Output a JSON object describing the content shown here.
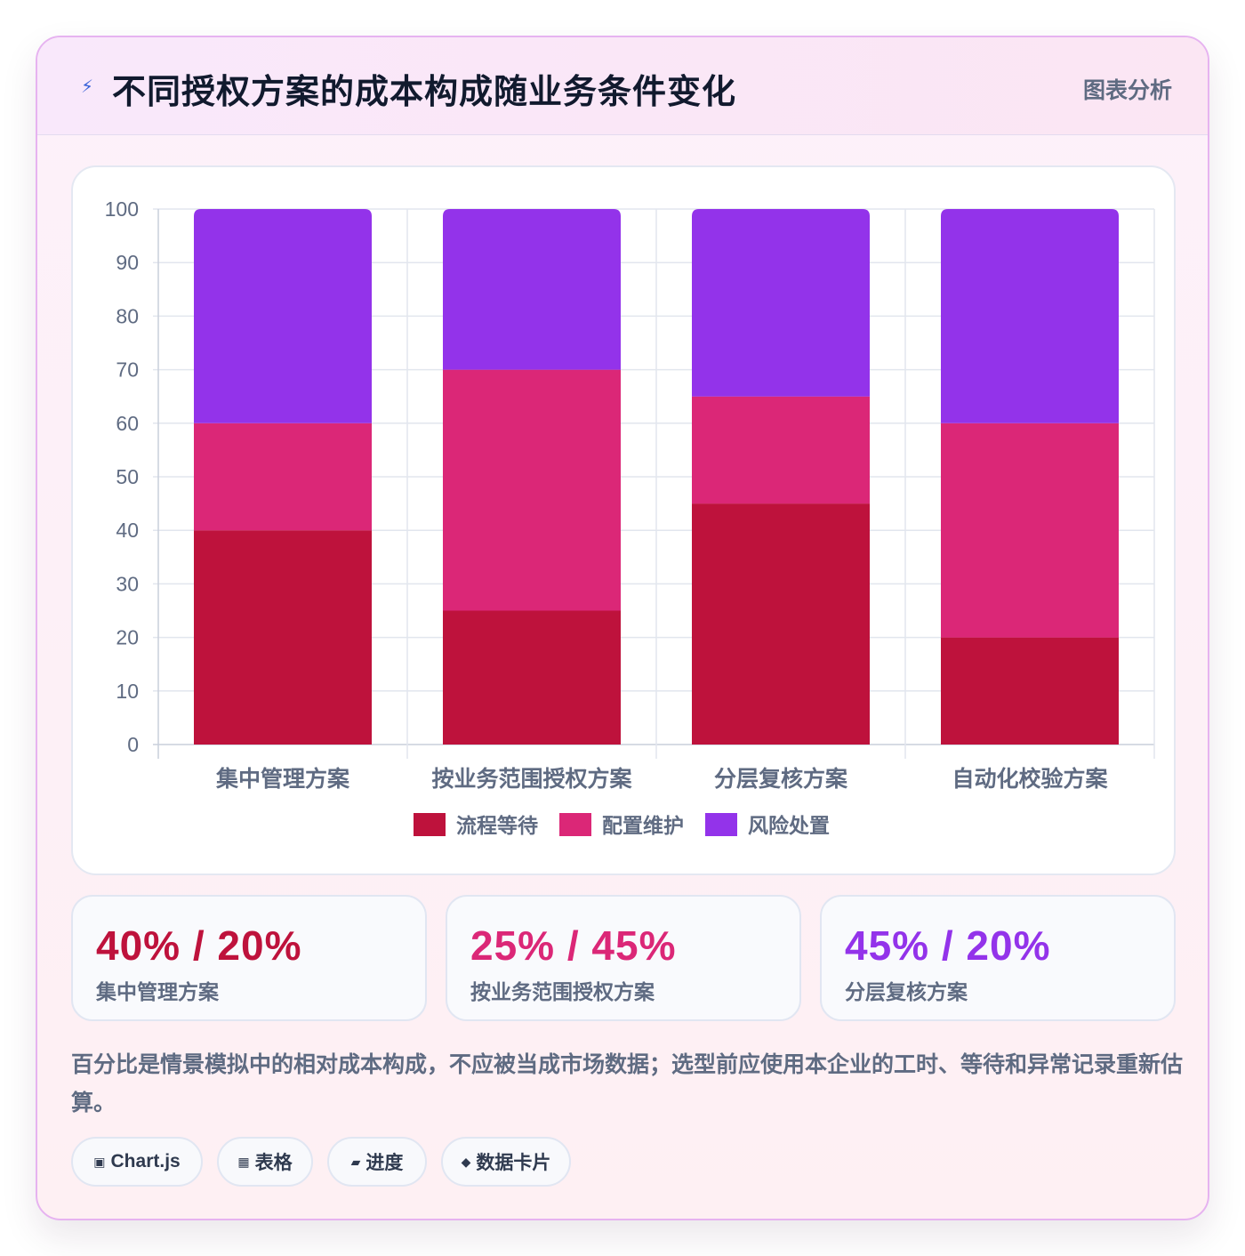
{
  "header": {
    "icon": "lightning-icon",
    "title": "不同授权方案的成本构成随业务条件变化",
    "tag": "图表分析"
  },
  "colors": {
    "wait": "#be123c",
    "config": "#db2777",
    "risk": "#9333ea"
  },
  "chart_data": {
    "type": "bar",
    "stacked": true,
    "categories": [
      "集中管理方案",
      "按业务范围授权方案",
      "分层复核方案",
      "自动化校验方案"
    ],
    "series": [
      {
        "name": "流程等待",
        "values": [
          40,
          25,
          45,
          20
        ]
      },
      {
        "name": "配置维护",
        "values": [
          20,
          45,
          20,
          40
        ]
      },
      {
        "name": "风险处置",
        "values": [
          40,
          30,
          35,
          40
        ]
      }
    ],
    "ylim": [
      0,
      100
    ],
    "yticks": [
      0,
      10,
      20,
      30,
      40,
      50,
      60,
      70,
      80,
      90,
      100
    ],
    "grid": true,
    "legend": "bottom"
  },
  "stats": [
    {
      "value": "40% / 20%",
      "label": "集中管理方案",
      "color": "#be123c"
    },
    {
      "value": "25% / 45%",
      "label": "按业务范围授权方案",
      "color": "#db2777"
    },
    {
      "value": "45% / 20%",
      "label": "分层复核方案",
      "color": "#9333ea"
    }
  ],
  "note": "百分比是情景模拟中的相对成本构成，不应被当成市场数据；选型前应使用本企业的工时、等待和异常记录重新估算。",
  "chips": [
    {
      "icon": "chart-icon",
      "glyph": "▣",
      "label": "Chart.js"
    },
    {
      "icon": "table-icon",
      "glyph": "▦",
      "label": "表格"
    },
    {
      "icon": "progress-icon",
      "glyph": "▰",
      "label": "进度"
    },
    {
      "icon": "card-icon",
      "glyph": "◆",
      "label": "数据卡片"
    }
  ]
}
